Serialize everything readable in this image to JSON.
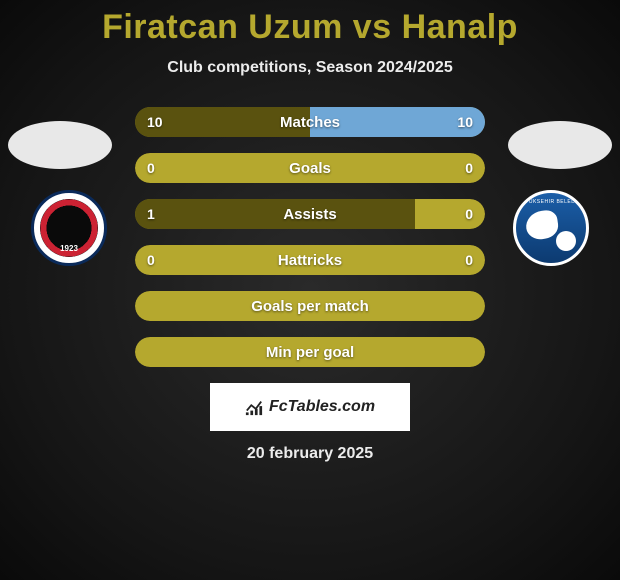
{
  "title_color": "#b5a82e",
  "title_fontsize": 34,
  "players": {
    "left": "Firatcan Uzum",
    "right": "Hanalp"
  },
  "subtitle": "Club competitions, Season 2024/2025",
  "clubs": {
    "left": {
      "name": "Ankara Genclerbirligi",
      "year": "1923"
    },
    "right": {
      "name": "Erzurumspor",
      "top_text": "BUYUKSEHIR BELEDIYE"
    }
  },
  "bar_style": {
    "track_bg_left": "#b5a82e",
    "track_bg_right": "#b5a82e",
    "empty_bg": "#b5a82e",
    "fill_left": "#5a520f",
    "fill_right": "#6fa7d6",
    "height": 30,
    "radius": 15,
    "gap": 16,
    "label_fontsize": 15,
    "value_fontsize": 14
  },
  "stats": [
    {
      "label": "Matches",
      "left_val": "10",
      "right_val": "10",
      "left_pct": 50,
      "right_pct": 50,
      "show_values": true
    },
    {
      "label": "Goals",
      "left_val": "0",
      "right_val": "0",
      "left_pct": 0,
      "right_pct": 0,
      "show_values": true
    },
    {
      "label": "Assists",
      "left_val": "1",
      "right_val": "0",
      "left_pct": 80,
      "right_pct": 0,
      "show_values": true
    },
    {
      "label": "Hattricks",
      "left_val": "0",
      "right_val": "0",
      "left_pct": 0,
      "right_pct": 0,
      "show_values": true
    },
    {
      "label": "Goals per match",
      "left_val": "",
      "right_val": "",
      "left_pct": 0,
      "right_pct": 0,
      "show_values": false
    },
    {
      "label": "Min per goal",
      "left_val": "",
      "right_val": "",
      "left_pct": 0,
      "right_pct": 0,
      "show_values": false
    }
  ],
  "watermark": "FcTables.com",
  "date": "20 february 2025",
  "background": "#1a1a1a"
}
